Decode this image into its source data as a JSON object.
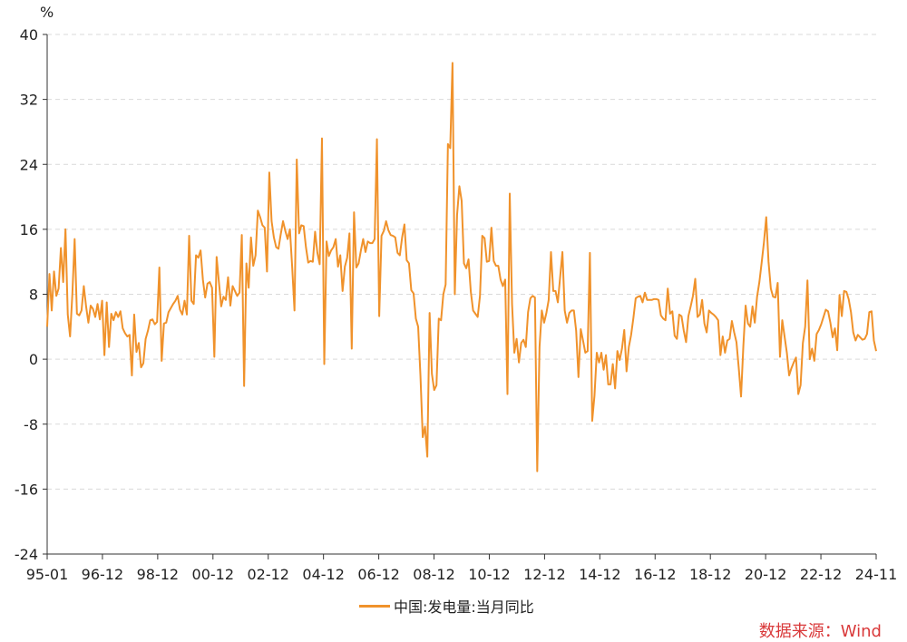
{
  "colors": {
    "series": "#F0922B",
    "source": "#D9393A",
    "grid": "#d9d9d9",
    "axis": "#333333"
  },
  "legend": {
    "label": "中国:发电量:当月同比"
  },
  "source": {
    "text": "数据来源：Wind"
  },
  "chart_data": {
    "type": "line",
    "ylabel": "%",
    "ylim": [
      -24,
      40
    ],
    "yticks": [
      -24,
      -16,
      -8,
      0,
      8,
      16,
      24,
      32,
      40
    ],
    "xtick_labels": [
      "95-01",
      "96-12",
      "98-12",
      "00-12",
      "02-12",
      "04-12",
      "06-12",
      "08-12",
      "10-12",
      "12-12",
      "14-12",
      "16-12",
      "18-12",
      "20-12",
      "22-12",
      "24-11"
    ],
    "grid": true,
    "legend_position": "bottom",
    "series": [
      {
        "name": "中国:发电量:当月同比",
        "x_start": "1995-01",
        "x_end": "2024-11",
        "values": [
          4,
          10.5,
          6,
          10.8,
          7.8,
          8.7,
          13.7,
          9.5,
          16,
          5.5,
          2.8,
          8,
          14.8,
          5.6,
          5.4,
          6,
          9,
          6.5,
          4.5,
          6.6,
          6.2,
          5.2,
          6.8,
          4.9,
          7.2,
          0.5,
          7,
          1.5,
          5.6,
          4.8,
          5.8,
          5.2,
          5.9,
          3.8,
          3.2,
          2.8,
          3,
          -2,
          5.5,
          0.9,
          2,
          -1,
          -0.5,
          2.5,
          3.5,
          4.8,
          4.9,
          4.3,
          4.6,
          11.3,
          -0.2,
          4.4,
          4.5,
          5.8,
          6.3,
          6.8,
          7.2,
          7.8,
          6.1,
          5.5,
          7.2,
          5.5,
          15.2,
          7.2,
          6.8,
          12.8,
          12.5,
          13.4,
          9.8,
          7.6,
          9.3,
          9.5,
          8.8,
          0.3,
          12.6,
          9.5,
          6.5,
          7.7,
          7.3,
          10.1,
          6.6,
          9,
          8.4,
          7.8,
          8.2,
          15.3,
          -3.3,
          11.8,
          8.8,
          15,
          11.5,
          12.8,
          18.3,
          17.5,
          16.5,
          16.2,
          10.8,
          23,
          17,
          15,
          13.8,
          13.6,
          15.4,
          17,
          15.8,
          14.8,
          16,
          11.3,
          6,
          24.6,
          15.5,
          16.5,
          16.4,
          13.8,
          11.9,
          12.1,
          12,
          15.7,
          13.1,
          11.7,
          27.2,
          -0.6,
          14.5,
          12.7,
          13.4,
          13.8,
          14.8,
          11.4,
          12.8,
          8.4,
          11.4,
          12.5,
          15.5,
          1.3,
          18.1,
          11.3,
          11.8,
          13.4,
          14.8,
          13.2,
          14.5,
          14.3,
          14.3,
          14.8,
          27.1,
          5.3,
          15.2,
          15.8,
          17,
          15.9,
          15.3,
          15.2,
          15,
          13.1,
          12.8,
          15,
          16.6,
          12.2,
          11.8,
          8.5,
          8.1,
          5,
          4,
          -2,
          -9.6,
          -8.3,
          -12,
          5.7,
          -1.8,
          -3.8,
          -3.2,
          5,
          4.8,
          8,
          9.2,
          26.5,
          26,
          36.5,
          8,
          17.8,
          21.3,
          19.5,
          11.8,
          11.2,
          12.3,
          8.3,
          6,
          5.6,
          5.2,
          7.8,
          15.2,
          14.9,
          12,
          12.1,
          16.2,
          12.1,
          11.5,
          11.5,
          9.8,
          9,
          9.8,
          -4.3,
          20.4,
          6.8,
          0.8,
          2.5,
          -0.4,
          2,
          2.4,
          1.5,
          5.8,
          7.5,
          7.8,
          7.6,
          -13.8,
          1.5,
          6,
          4.5,
          5.7,
          7.3,
          13.2,
          8.4,
          8.4,
          7,
          10.1,
          13.2,
          6,
          4.5,
          5.7,
          6,
          6,
          3.5,
          -2.2,
          3.7,
          2.3,
          0.8,
          1,
          13.1,
          -7.6,
          -4.5,
          0.8,
          -0.4,
          0.8,
          -1.3,
          0.5,
          -3.1,
          -3.1,
          -0.6,
          -3.6,
          1,
          -0.1,
          1.3,
          3.6,
          -1.5,
          1.5,
          3,
          5.1,
          7.5,
          7.7,
          7.8,
          7,
          8.2,
          7.3,
          7.3,
          7.3,
          7.4,
          7.4,
          7.3,
          5.4,
          5,
          4.8,
          8.7,
          5.6,
          5.9,
          2.9,
          2.5,
          5.5,
          5.3,
          3.5,
          2.1,
          5.3,
          6.5,
          7.8,
          9.9,
          5.2,
          5.5,
          7.3,
          4.4,
          3.3,
          6,
          5.7,
          5.5,
          5.2,
          4.8,
          0.5,
          2.8,
          0.8,
          2.3,
          2.5,
          4.7,
          3.3,
          2.1,
          -1.1,
          -4.6,
          1.6,
          6.6,
          4.4,
          4,
          6.5,
          4.5,
          7.7,
          9.5,
          11.9,
          14.4,
          17.5,
          12,
          8.7,
          7.7,
          7.6,
          9.4,
          0.3,
          4.8,
          2.8,
          0.8,
          -2,
          -1.1,
          -0.4,
          0.2,
          -4.3,
          -3.2,
          2,
          4,
          9.7,
          0,
          1.3,
          -0.2,
          3.1,
          3.6,
          4.3,
          5.2,
          6.1,
          5.9,
          4.5,
          2.7,
          3.8,
          1.1,
          7.9,
          5.3,
          8.4,
          8.3,
          7.4,
          5.8,
          3.3,
          2.3,
          3,
          2.7,
          2.4,
          2.5,
          3.1,
          5.8,
          5.9,
          2.3,
          1
        ]
      }
    ]
  }
}
